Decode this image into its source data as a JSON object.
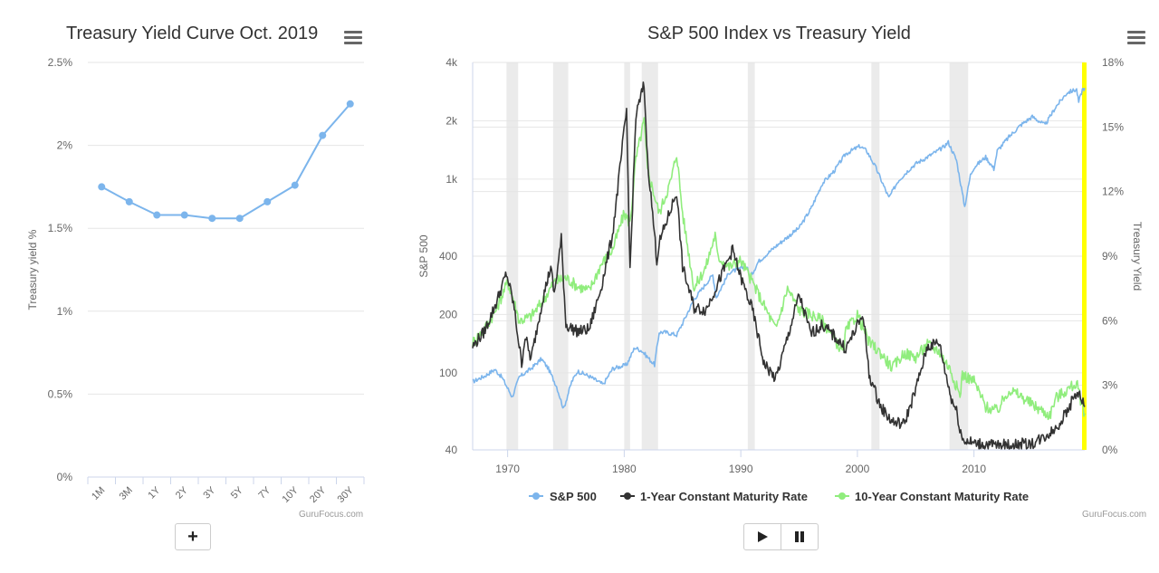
{
  "left_chart": {
    "title": "Treasury Yield Curve Oct. 2019",
    "ylabel": "Treasury yield %",
    "credit": "GuruFocus.com",
    "add_button": "+"
  },
  "right_chart": {
    "title": "S&P 500 Index vs Treasury Yield",
    "ylabel_left": "S&P 500",
    "ylabel_right": "Treasury Yield",
    "credit": "GuruFocus.com",
    "legend": [
      "S&P 500",
      "1-Year Constant Maturity Rate",
      "10-Year Constant Maturity Rate"
    ]
  },
  "colors": {
    "sp500": "#7cb5ec",
    "one_year": "#333333",
    "ten_year": "#90ed7d",
    "recession": "#ebebeb",
    "highlight": "#ffff00"
  },
  "chart_data": [
    {
      "type": "line",
      "title": "Treasury Yield Curve Oct. 2019",
      "ylabel": "Treasury yield %",
      "categories": [
        "1M",
        "3M",
        "1Y",
        "2Y",
        "3Y",
        "5Y",
        "7Y",
        "10Y",
        "20Y",
        "30Y"
      ],
      "values": [
        1.75,
        1.66,
        1.58,
        1.58,
        1.56,
        1.56,
        1.66,
        1.76,
        2.06,
        2.25
      ],
      "ylim": [
        0,
        2.5
      ],
      "yticks": [
        "0%",
        "0.5%",
        "1%",
        "1.5%",
        "2%",
        "2.5%"
      ],
      "grid": true
    },
    {
      "type": "line",
      "title": "S&P 500 Index vs Treasury Yield",
      "xlim": [
        1967,
        2019.5
      ],
      "xticks": [
        "1970",
        "1980",
        "1990",
        "2000",
        "2010"
      ],
      "ylabel_left": "S&P 500",
      "ylim_left": [
        40,
        4000
      ],
      "yscale_left": "log",
      "yticks_left": [
        "40",
        "100",
        "200",
        "400",
        "1k",
        "2k",
        "4k"
      ],
      "ylabel_right": "Treasury Yield",
      "ylim_right": [
        0,
        18
      ],
      "yticks_right": [
        "0%",
        "3%",
        "6%",
        "9%",
        "12%",
        "15%",
        "18%"
      ],
      "legend_position": "bottom",
      "recessions": [
        [
          1969.9,
          1970.9
        ],
        [
          1973.9,
          1975.2
        ],
        [
          1980.0,
          1980.5
        ],
        [
          1981.5,
          1982.9
        ],
        [
          1990.6,
          1991.2
        ],
        [
          2001.2,
          2001.9
        ],
        [
          2007.9,
          2009.5
        ]
      ],
      "series": [
        {
          "name": "S&P 500",
          "axis": "left",
          "x": [
            1967,
            1968,
            1968.9,
            1969.5,
            1970.4,
            1971,
            1972,
            1972.9,
            1973.5,
            1974.2,
            1974.8,
            1975.5,
            1976,
            1977,
            1978.2,
            1979,
            1980.2,
            1980.9,
            1981.5,
            1982.6,
            1983,
            1983.5,
            1984.5,
            1985,
            1986,
            1987.6,
            1987.9,
            1989,
            1990.5,
            1990.8,
            1991.5,
            1993,
            1995,
            1996,
            1997,
            1998,
            1999,
            2000.2,
            2000.8,
            2001.6,
            2002.7,
            2003.5,
            2004.5,
            2005,
            2006,
            2007.3,
            2007.8,
            2008.5,
            2009.2,
            2009.7,
            2010,
            2011,
            2011.7,
            2012,
            2013,
            2014,
            2015,
            2016.1,
            2017,
            2018,
            2018.8,
            2018.98,
            2019.3,
            2019.5
          ],
          "values": [
            90,
            96,
            104,
            95,
            75,
            95,
            105,
            118,
            105,
            85,
            65,
            90,
            102,
            96,
            87,
            105,
            110,
            135,
            130,
            110,
            162,
            162,
            157,
            180,
            240,
            320,
            245,
            330,
            355,
            310,
            375,
            450,
            560,
            700,
            950,
            1100,
            1350,
            1480,
            1400,
            1140,
            800,
            980,
            1130,
            1200,
            1300,
            1450,
            1550,
            1250,
            720,
            1050,
            1150,
            1300,
            1130,
            1400,
            1650,
            1900,
            2100,
            1900,
            2350,
            2800,
            2900,
            2500,
            2900,
            2950
          ]
        },
        {
          "name": "1-Year Constant Maturity Rate",
          "axis": "right",
          "x": [
            1967,
            1968,
            1969,
            1969.9,
            1970.5,
            1971.2,
            1971.5,
            1972,
            1973,
            1973.7,
            1974,
            1974.6,
            1975,
            1976,
            1977,
            1978,
            1979,
            1980.2,
            1980.5,
            1981,
            1981.7,
            1982,
            1982.8,
            1983,
            1984.5,
            1985,
            1986,
            1987,
            1988,
            1989.3,
            1990,
            1991,
            1992,
            1993,
            1994,
            1995,
            1996,
            1997,
            1998,
            1999,
            2000.5,
            2001,
            2002,
            2003,
            2004,
            2005,
            2006,
            2007,
            2008,
            2008.5,
            2009,
            2010,
            2012,
            2015,
            2016,
            2017,
            2018,
            2018.8,
            2019.2,
            2019.5
          ],
          "values": [
            4.8,
            5.5,
            6.8,
            8.2,
            6.8,
            4.0,
            5.3,
            4.2,
            7.0,
            8.5,
            7.2,
            9.8,
            5.8,
            5.5,
            5.6,
            7.5,
            10.0,
            15.8,
            8.3,
            15.5,
            17.0,
            13.5,
            8.8,
            9.6,
            12.0,
            8.5,
            6.6,
            6.5,
            7.7,
            9.3,
            8.0,
            6.5,
            4.0,
            3.3,
            5.2,
            7.2,
            5.4,
            5.8,
            5.3,
            4.7,
            6.3,
            3.5,
            2.0,
            1.3,
            1.2,
            2.8,
            4.8,
            5.0,
            2.5,
            1.8,
            0.5,
            0.3,
            0.2,
            0.3,
            0.6,
            1.0,
            1.8,
            2.7,
            2.4,
            2.0
          ]
        },
        {
          "name": "10-Year Constant Maturity Rate",
          "axis": "right",
          "x": [
            1967,
            1968,
            1969,
            1970,
            1970.5,
            1971,
            1972,
            1973,
            1974,
            1975,
            1976,
            1977,
            1978,
            1979,
            1980,
            1980.5,
            1981,
            1981.7,
            1982,
            1983,
            1984,
            1984.5,
            1985,
            1986,
            1987,
            1987.8,
            1988,
            1989,
            1990,
            1991,
            1993,
            1994,
            1995,
            1996,
            1997,
            1998.8,
            1999,
            2000,
            2001,
            2002,
            2003,
            2004,
            2005,
            2006,
            2007,
            2008,
            2008.8,
            2009,
            2010,
            2011,
            2012,
            2013,
            2014,
            2015,
            2016.5,
            2017,
            2018,
            2018.8,
            2019.2,
            2019.5
          ],
          "values": [
            5.0,
            5.6,
            6.5,
            7.8,
            7.0,
            6.0,
            6.2,
            6.9,
            7.8,
            8.0,
            7.6,
            7.4,
            8.6,
            9.3,
            11.0,
            10.5,
            13.5,
            15.3,
            13.0,
            11.0,
            12.5,
            13.8,
            11.0,
            7.5,
            8.5,
            10.0,
            9.0,
            8.5,
            8.8,
            7.8,
            5.6,
            7.5,
            6.5,
            6.3,
            6.0,
            4.5,
            5.5,
            6.3,
            5.0,
            4.5,
            3.8,
            4.5,
            4.3,
            4.9,
            4.6,
            3.7,
            2.5,
            3.5,
            3.2,
            2.0,
            1.8,
            2.8,
            2.5,
            2.1,
            1.6,
            2.4,
            2.8,
            3.1,
            2.2,
            1.7
          ]
        }
      ]
    }
  ]
}
